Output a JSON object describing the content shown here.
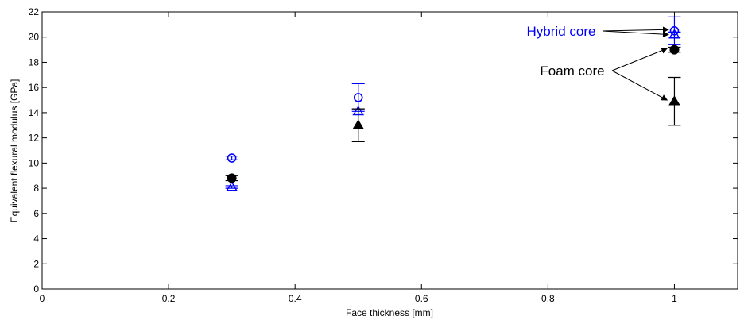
{
  "chart_data": {
    "type": "scatter",
    "xlabel": "Face thickness [mm]",
    "ylabel": "Equivalent flexural modulus [GPa]",
    "xlim": [
      0,
      1.1
    ],
    "ylim": [
      0,
      22
    ],
    "xticks": [
      0,
      0.2,
      0.4,
      0.6,
      0.8,
      1
    ],
    "xtick_labels": [
      "0",
      "0.2",
      "0.4",
      "0.6",
      "0.8",
      "1"
    ],
    "yticks": [
      0,
      2,
      4,
      6,
      8,
      10,
      12,
      14,
      16,
      18,
      20,
      22
    ],
    "ytick_labels": [
      "0",
      "2",
      "4",
      "6",
      "8",
      "10",
      "12",
      "14",
      "16",
      "18",
      "20",
      "22"
    ],
    "grid": false,
    "series": [
      {
        "color": "#0000ff",
        "marker": "circle-open",
        "points": [
          {
            "x": 0.3,
            "y": 10.4,
            "err": 0.15
          },
          {
            "x": 0.5,
            "y": 15.2,
            "err": 1.1
          },
          {
            "x": 1.0,
            "y": 20.5,
            "err": 1.1
          }
        ]
      },
      {
        "color": "#0000ff",
        "marker": "triangle-open",
        "points": [
          {
            "x": 0.3,
            "y": 8.1,
            "err": 0.1
          },
          {
            "x": 0.5,
            "y": 14.1,
            "err": 0.2
          },
          {
            "x": 1.0,
            "y": 20.2,
            "err": 0.2
          }
        ]
      },
      {
        "color": "#000000",
        "marker": "circle-filled",
        "points": [
          {
            "x": 0.3,
            "y": 8.8,
            "err": 0.2
          },
          {
            "x": 0.5,
            "y": null,
            "err": 0
          },
          {
            "x": 1.0,
            "y": 19.0,
            "err": 0.2
          }
        ]
      },
      {
        "color": "#000000",
        "marker": "triangle-filled",
        "points": [
          {
            "x": 0.3,
            "y": null,
            "err": 0
          },
          {
            "x": 0.5,
            "y": 13.0,
            "err": 1.3
          },
          {
            "x": 1.0,
            "y": 14.9,
            "err": 1.9
          }
        ]
      }
    ],
    "annotations": [
      {
        "text": "Hybrid core",
        "color": "#0000ff",
        "targets": [
          {
            "x": 0.998,
            "y": 20.6
          },
          {
            "x": 0.998,
            "y": 20.2
          }
        ]
      },
      {
        "text": "Foam core",
        "color": "#000000",
        "targets": [
          {
            "x": 0.996,
            "y": 19.1
          },
          {
            "x": 0.996,
            "y": 15.0
          }
        ]
      }
    ]
  }
}
